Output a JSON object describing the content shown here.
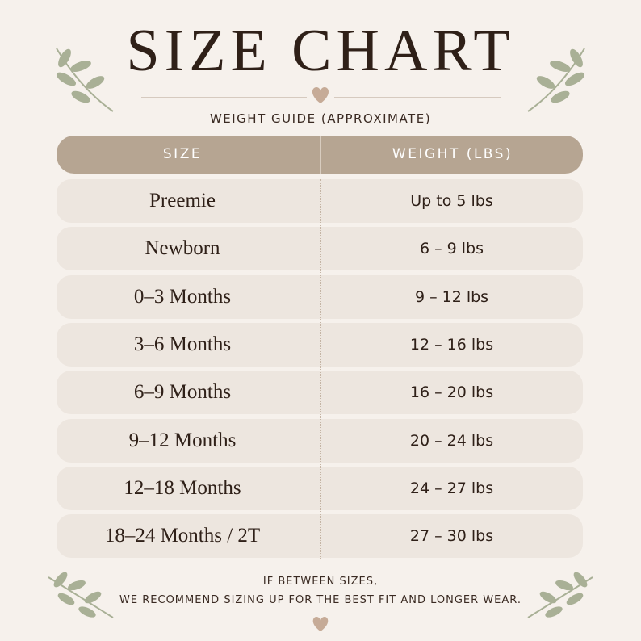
{
  "header": {
    "title": "SIZE CHART",
    "subtitle": "WEIGHT GUIDE (APPROXIMATE)"
  },
  "table": {
    "columns": [
      "SIZE",
      "WEIGHT (LBS)"
    ],
    "rows": [
      [
        "Preemie",
        "Up to 5 lbs"
      ],
      [
        "Newborn",
        "6 – 9 lbs"
      ],
      [
        "0–3 Months",
        "9 – 12 lbs"
      ],
      [
        "3–6 Months",
        "12 – 16 lbs"
      ],
      [
        "6–9 Months",
        "16 – 20 lbs"
      ],
      [
        "9–12 Months",
        "20 – 24 lbs"
      ],
      [
        "12–18 Months",
        "24 – 27 lbs"
      ],
      [
        "18–24 Months / 2T",
        "27 – 30 lbs"
      ]
    ]
  },
  "footer": {
    "lines": [
      "IF BETWEEN SIZES,",
      "WE RECOMMEND SIZING UP FOR THE BEST FIT AND LONGER WEAR."
    ]
  }
}
